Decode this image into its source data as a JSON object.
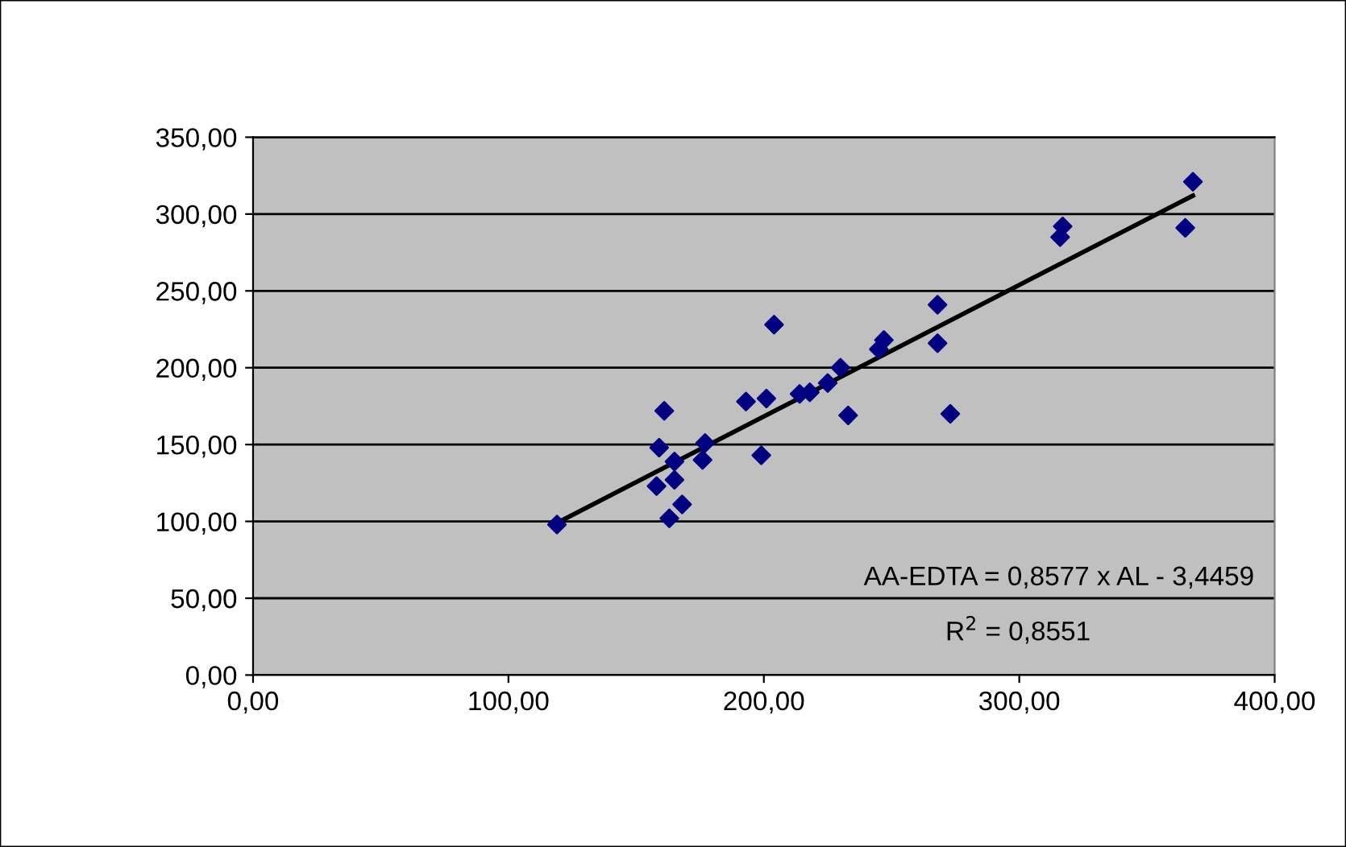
{
  "chart_data": {
    "type": "scatter",
    "x": [
      119,
      158,
      159,
      161,
      163,
      168,
      165,
      165,
      176,
      177,
      193,
      199,
      201,
      204,
      214,
      218,
      225,
      230,
      233,
      245,
      247,
      268,
      268,
      273,
      317,
      316,
      365,
      368
    ],
    "series": [
      {
        "color": "#000080",
        "marker": "diamond",
        "values": [
          98,
          123,
          148,
          172,
          102,
          111,
          127,
          139,
          140,
          151,
          178,
          143,
          180,
          228,
          183,
          184,
          190,
          200,
          169,
          212,
          218,
          241,
          216,
          170,
          292,
          285,
          291,
          321
        ]
      },
      {
        "type": "line",
        "color": "#000000",
        "x": [
          119,
          368
        ],
        "values": [
          99,
          312
        ]
      }
    ],
    "xlim": [
      0,
      400
    ],
    "ylim": [
      0,
      350
    ],
    "xticks": [
      {
        "value": 0,
        "label": "0,00"
      },
      {
        "value": 100,
        "label": "100,00"
      },
      {
        "value": 200,
        "label": "200,00"
      },
      {
        "value": 300,
        "label": "300,00"
      },
      {
        "value": 400,
        "label": "400,00"
      }
    ],
    "yticks": [
      {
        "value": 0,
        "label": "0,00"
      },
      {
        "value": 50,
        "label": "50,00"
      },
      {
        "value": 100,
        "label": "100,00"
      },
      {
        "value": 150,
        "label": "150,00"
      },
      {
        "value": 200,
        "label": "200,00"
      },
      {
        "value": 250,
        "label": "250,00"
      },
      {
        "value": 300,
        "label": "300,00"
      },
      {
        "value": 350,
        "label": "350,00"
      }
    ],
    "grid": "y",
    "annotations": [
      "AA-EDTA = 0,8577 x AL - 3,4459",
      "R$^{2}$ = 0,8551"
    ]
  }
}
